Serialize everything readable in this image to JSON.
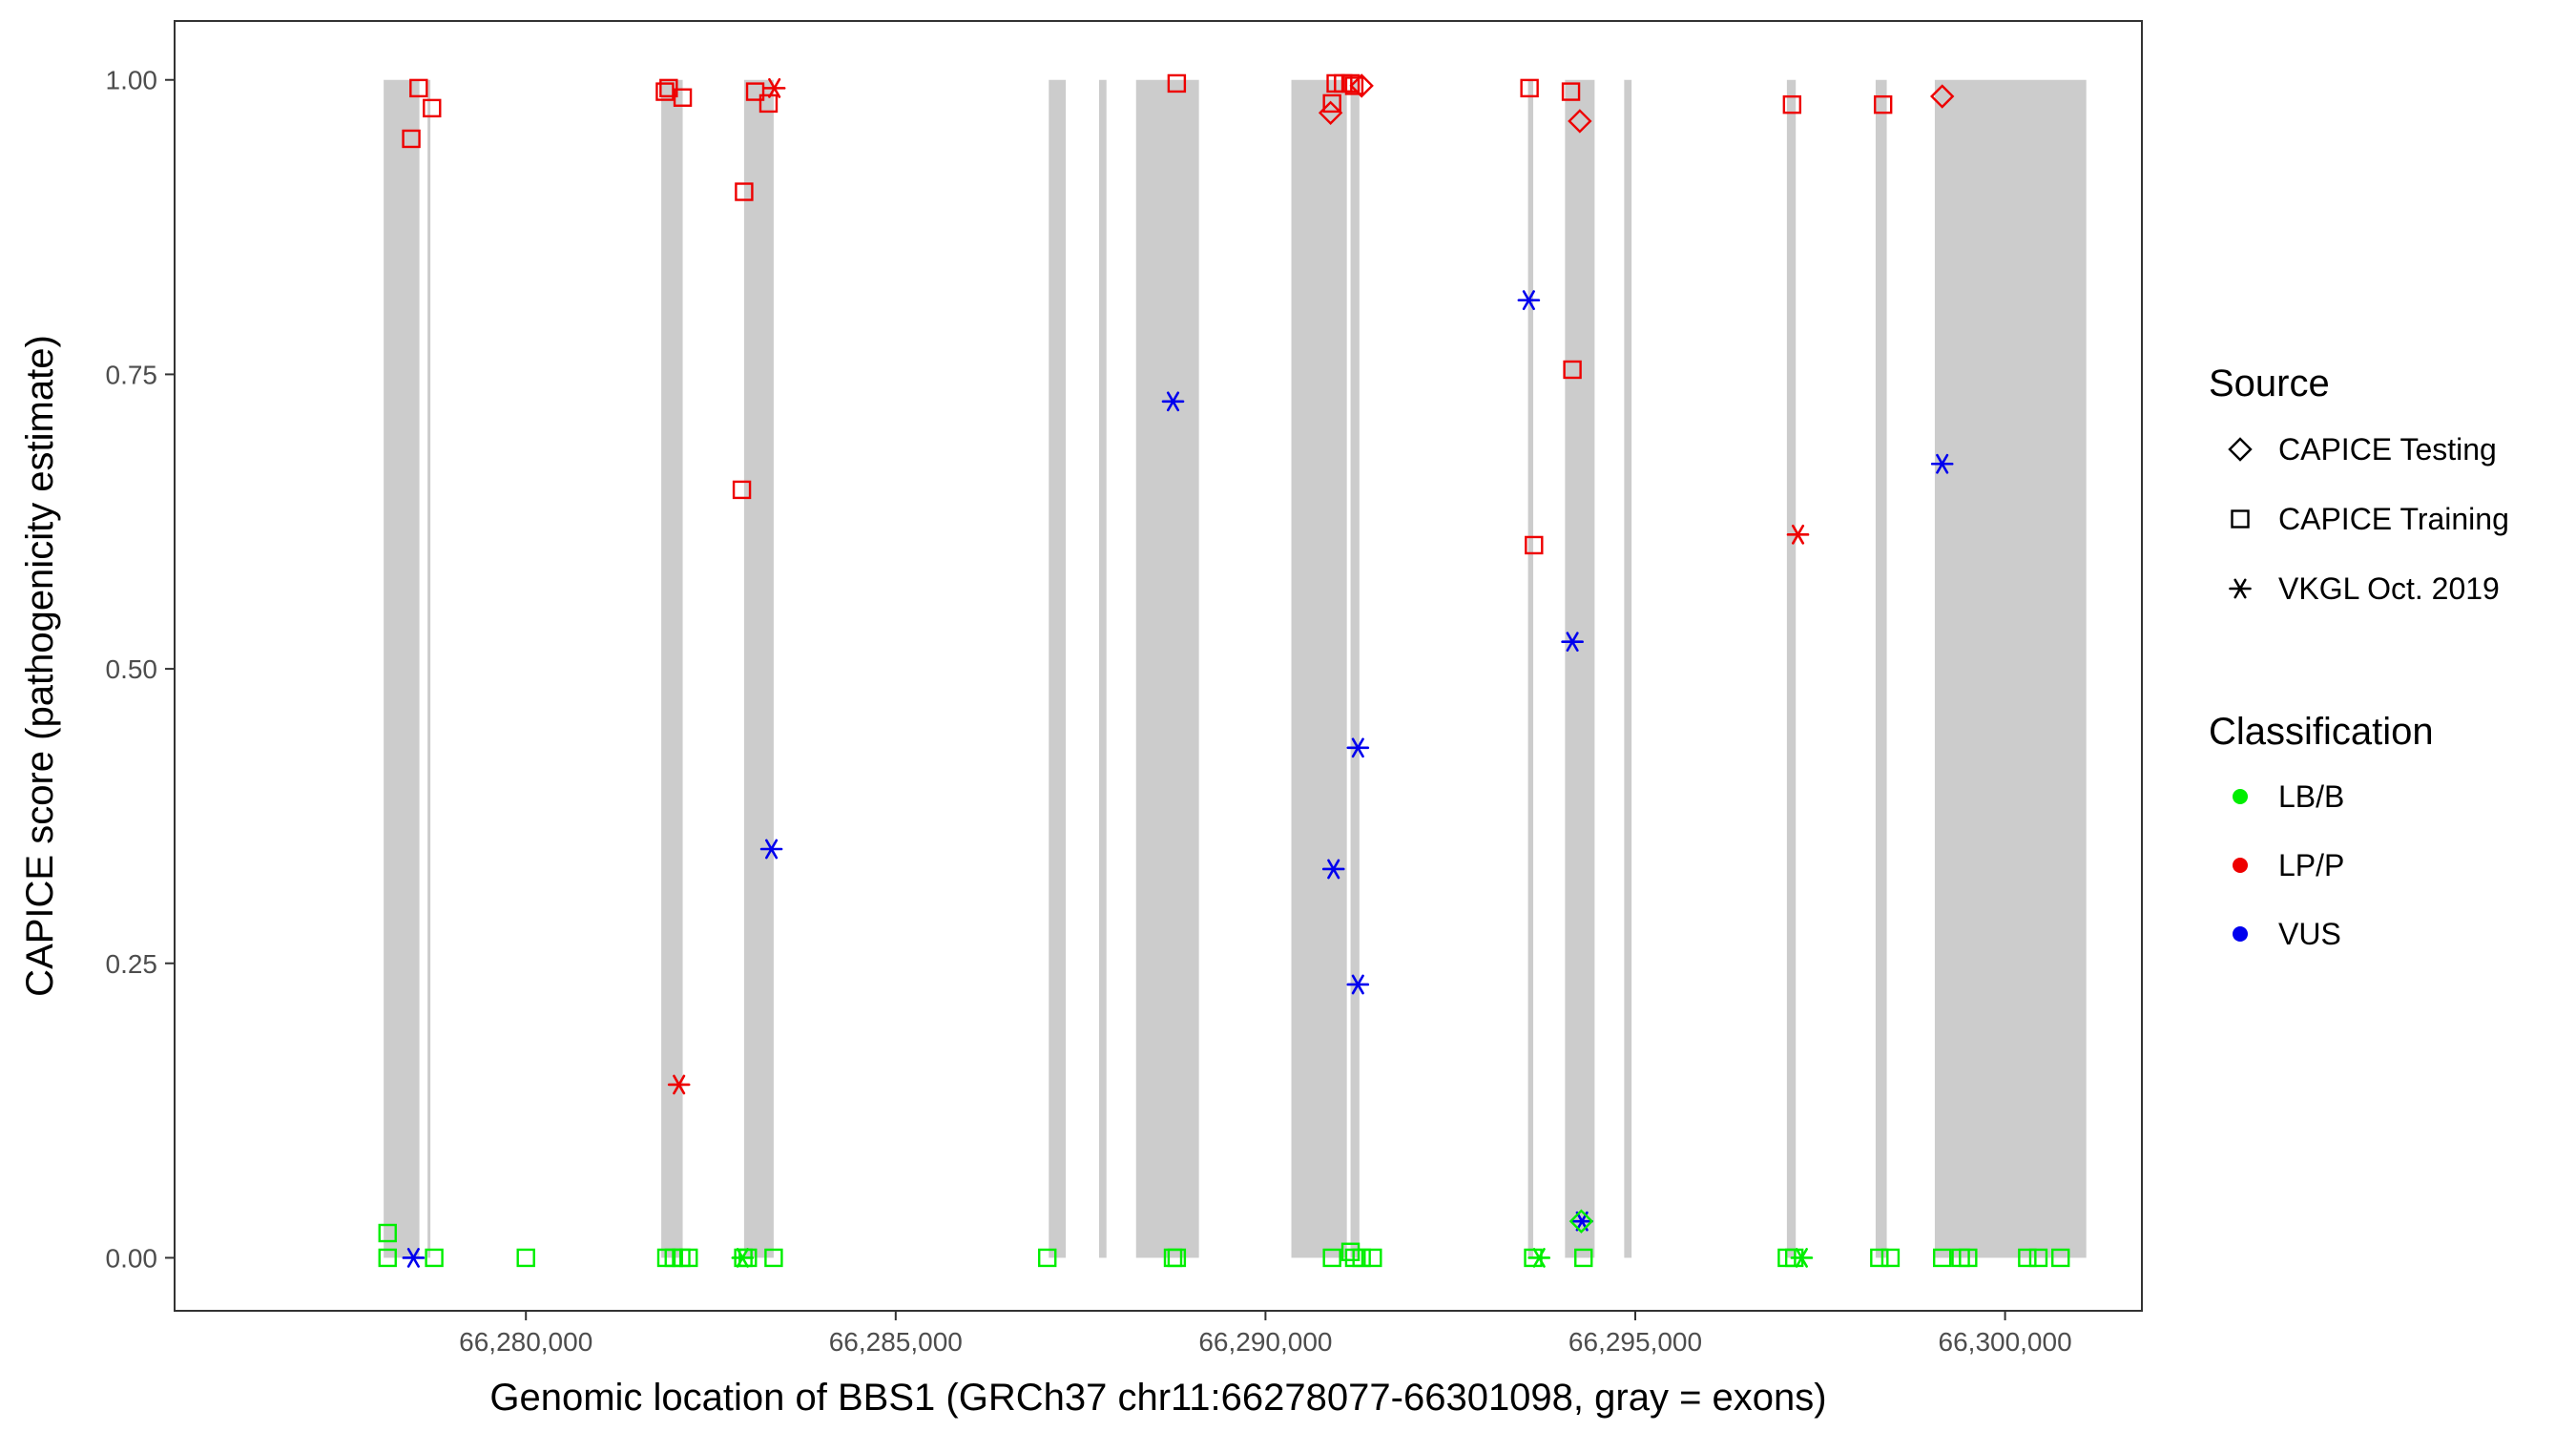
{
  "chart_data": {
    "type": "scatter",
    "title": "",
    "xlabel": "Genomic location of BBS1 (GRCh37 chr11:66278077-66301098, gray = exons)",
    "ylabel": "CAPICE score (pathogenicity estimate)",
    "xlim": [
      66275250,
      66301850
    ],
    "ylim": [
      -0.045,
      1.05
    ],
    "x_ticks": [
      66280000,
      66285000,
      66290000,
      66295000,
      66300000
    ],
    "x_tick_labels": [
      "66,280,000",
      "66,285,000",
      "66,290,000",
      "66,295,000",
      "66,300,000"
    ],
    "y_ticks": [
      0,
      0.25,
      0.5,
      0.75,
      1.0
    ],
    "y_tick_labels": [
      "0.00",
      "0.25",
      "0.50",
      "0.75",
      "1.00"
    ],
    "grid": false,
    "exon_color": "#cccccc",
    "exons": [
      [
        66278077,
        66278560
      ],
      [
        66278670,
        66278700
      ],
      [
        66281830,
        66282120
      ],
      [
        66282950,
        66283350
      ],
      [
        66287070,
        66287300
      ],
      [
        66287750,
        66287850
      ],
      [
        66288250,
        66289100
      ],
      [
        66290350,
        66291100
      ],
      [
        66291150,
        66291270
      ],
      [
        66293550,
        66293620
      ],
      [
        66294050,
        66294450
      ],
      [
        66294850,
        66294950
      ],
      [
        66297050,
        66297170
      ],
      [
        66298250,
        66298400
      ],
      [
        66299050,
        66301098
      ]
    ],
    "legend": {
      "position": "right",
      "source_title": "Source",
      "sources": [
        {
          "key": "testing",
          "label": "CAPICE Testing",
          "shape": "diamond"
        },
        {
          "key": "training",
          "label": "CAPICE Training",
          "shape": "square"
        },
        {
          "key": "vkgl",
          "label": "VKGL Oct. 2019",
          "shape": "asterisk"
        }
      ],
      "class_title": "Classification",
      "classes": [
        {
          "key": "LB/B",
          "label": "LB/B",
          "color": "#00ee00"
        },
        {
          "key": "LP/P",
          "label": "LP/P",
          "color": "#ee0000"
        },
        {
          "key": "VUS",
          "label": "VUS",
          "color": "#0000ee"
        }
      ]
    },
    "series": [
      {
        "source": "training",
        "classification": "LP/P",
        "points": [
          [
            66278450,
            0.95
          ],
          [
            66278550,
            0.993
          ],
          [
            66278730,
            0.976
          ],
          [
            66281880,
            0.99
          ],
          [
            66281930,
            0.993
          ],
          [
            66282120,
            0.985
          ],
          [
            66282950,
            0.905
          ],
          [
            66283100,
            0.99
          ],
          [
            66283280,
            0.98
          ],
          [
            66282920,
            0.652
          ],
          [
            66288800,
            0.997
          ],
          [
            66290900,
            0.98
          ],
          [
            66290950,
            0.997
          ],
          [
            66291050,
            0.997
          ],
          [
            66291150,
            0.997
          ],
          [
            66291200,
            0.995
          ],
          [
            66293570,
            0.993
          ],
          [
            66293630,
            0.605
          ],
          [
            66294130,
            0.99
          ],
          [
            66294150,
            0.754
          ],
          [
            66297120,
            0.979
          ],
          [
            66298350,
            0.979
          ]
        ]
      },
      {
        "source": "testing",
        "classification": "LP/P",
        "points": [
          [
            66290880,
            0.972
          ],
          [
            66291300,
            0.995
          ],
          [
            66294250,
            0.965
          ],
          [
            66299150,
            0.986
          ]
        ]
      },
      {
        "source": "vkgl",
        "classification": "LP/P",
        "points": [
          [
            66283360,
            0.993
          ],
          [
            66282070,
            0.147
          ],
          [
            66297200,
            0.614
          ]
        ]
      },
      {
        "source": "vkgl",
        "classification": "VUS",
        "points": [
          [
            66278480,
            0.0
          ],
          [
            66283320,
            0.347
          ],
          [
            66288750,
            0.727
          ],
          [
            66290920,
            0.33
          ],
          [
            66291250,
            0.433
          ],
          [
            66291250,
            0.232
          ],
          [
            66293560,
            0.813
          ],
          [
            66294150,
            0.523
          ],
          [
            66294280,
            0.031
          ],
          [
            66299150,
            0.674
          ]
        ]
      },
      {
        "source": "training",
        "classification": "LB/B",
        "points": [
          [
            66278130,
            0.021
          ],
          [
            66278130,
            0.0
          ],
          [
            66278760,
            0.0
          ],
          [
            66280000,
            0.0
          ],
          [
            66281900,
            0.0
          ],
          [
            66282000,
            0.0
          ],
          [
            66282100,
            0.0
          ],
          [
            66282200,
            0.0
          ],
          [
            66282940,
            0.0
          ],
          [
            66283000,
            0.0
          ],
          [
            66283350,
            0.0
          ],
          [
            66287050,
            0.0
          ],
          [
            66288750,
            0.0
          ],
          [
            66288800,
            0.0
          ],
          [
            66290900,
            0.0
          ],
          [
            66291150,
            0.005
          ],
          [
            66291200,
            0.0
          ],
          [
            66291300,
            0.0
          ],
          [
            66291450,
            0.0
          ],
          [
            66293620,
            0.0
          ],
          [
            66294300,
            0.0
          ],
          [
            66297050,
            0.0
          ],
          [
            66297150,
            0.0
          ],
          [
            66298300,
            0.0
          ],
          [
            66298450,
            0.0
          ],
          [
            66299150,
            0.0
          ],
          [
            66299400,
            0.0
          ],
          [
            66299500,
            0.0
          ],
          [
            66300300,
            0.0
          ],
          [
            66300450,
            0.0
          ],
          [
            66300750,
            0.0
          ]
        ]
      },
      {
        "source": "testing",
        "classification": "LB/B",
        "points": [
          [
            66294270,
            0.031
          ]
        ]
      },
      {
        "source": "vkgl",
        "classification": "LB/B",
        "points": [
          [
            66282930,
            0.0
          ],
          [
            66293700,
            0.0
          ],
          [
            66297250,
            0.0
          ]
        ]
      }
    ]
  }
}
